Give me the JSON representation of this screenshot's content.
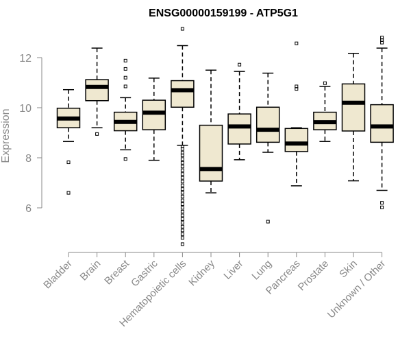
{
  "chart_data": {
    "type": "boxplot",
    "title": "ENSG00000159199 - ATP5G1",
    "xlabel": "",
    "ylabel": "Expression",
    "ylim": [
      4.5,
      13.2
    ],
    "yticks": [
      6,
      8,
      10,
      12
    ],
    "colors": {
      "box_fill": "#EFE8D0",
      "box_stroke": "#000000",
      "median": "#000000",
      "axis": "#888888"
    },
    "categories": [
      "Bladder",
      "Brain",
      "Breast",
      "Gastric",
      "Hematopoietic cells",
      "Kidney",
      "Liver",
      "Lung",
      "Pancreas",
      "Prostate",
      "Skin",
      "Unknown / Other"
    ],
    "boxes": [
      {
        "name": "Bladder",
        "whislo": 8.65,
        "q1": 9.2,
        "med": 9.57,
        "q3": 9.98,
        "whishi": 10.72,
        "fliers": [
          7.82,
          6.6
        ]
      },
      {
        "name": "Brain",
        "whislo": 9.2,
        "q1": 10.28,
        "med": 10.83,
        "q3": 11.12,
        "whishi": 12.38,
        "fliers": [
          8.95
        ]
      },
      {
        "name": "Breast",
        "whislo": 8.32,
        "q1": 9.08,
        "med": 9.43,
        "q3": 9.82,
        "whishi": 10.4,
        "fliers": [
          11.88,
          11.55,
          11.2,
          10.85,
          7.95
        ]
      },
      {
        "name": "Gastric",
        "whislo": 7.9,
        "q1": 9.12,
        "med": 9.8,
        "q3": 10.3,
        "whishi": 11.18,
        "fliers": []
      },
      {
        "name": "Hematopoietic cells",
        "whislo": 8.5,
        "q1": 10.02,
        "med": 10.7,
        "q3": 11.08,
        "whishi": 12.48,
        "fliers": [
          13.15,
          8.45,
          8.35,
          8.2,
          8.1,
          7.95,
          7.8,
          7.65,
          7.5,
          7.35,
          7.2,
          7.05,
          6.9,
          6.75,
          6.6,
          6.45,
          6.3,
          6.15,
          6.0,
          5.85,
          5.7,
          5.55,
          5.4,
          5.25,
          5.1,
          4.95,
          4.8,
          4.55
        ]
      },
      {
        "name": "Kidney",
        "whislo": 6.6,
        "q1": 7.07,
        "med": 7.55,
        "q3": 9.3,
        "whishi": 11.5,
        "fliers": []
      },
      {
        "name": "Liver",
        "whislo": 7.92,
        "q1": 8.55,
        "med": 9.25,
        "q3": 9.75,
        "whishi": 11.45,
        "fliers": [
          11.72
        ]
      },
      {
        "name": "Lung",
        "whislo": 8.22,
        "q1": 8.62,
        "med": 9.12,
        "q3": 10.02,
        "whishi": 11.38,
        "fliers": [
          5.45
        ]
      },
      {
        "name": "Pancreas",
        "whislo": 6.88,
        "q1": 8.25,
        "med": 8.57,
        "q3": 9.17,
        "whishi": 9.2,
        "fliers": [
          12.57,
          10.85,
          10.75
        ]
      },
      {
        "name": "Prostate",
        "whislo": 8.65,
        "q1": 9.12,
        "med": 9.42,
        "q3": 9.82,
        "whishi": 10.85,
        "fliers": [
          10.98
        ]
      },
      {
        "name": "Skin",
        "whislo": 7.08,
        "q1": 9.07,
        "med": 10.2,
        "q3": 10.95,
        "whishi": 12.17,
        "fliers": []
      },
      {
        "name": "Unknown / Other",
        "whislo": 6.7,
        "q1": 8.62,
        "med": 9.25,
        "q3": 10.12,
        "whishi": 12.38,
        "fliers": [
          12.8,
          12.7,
          12.6,
          6.2,
          6.02
        ]
      }
    ]
  }
}
